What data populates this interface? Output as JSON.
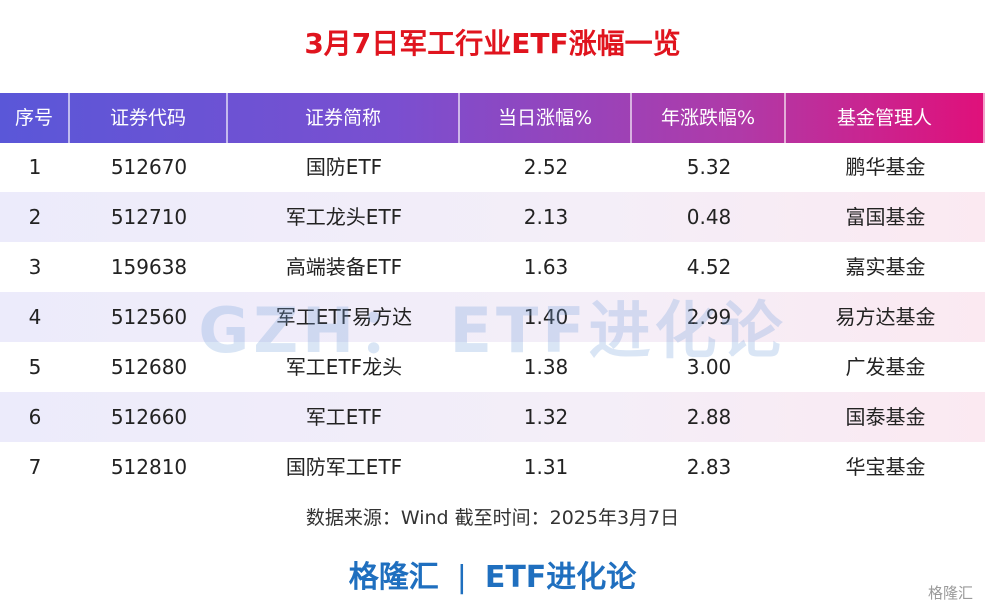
{
  "header": {
    "title": "3月7日军工行业ETF涨幅一览"
  },
  "table": {
    "columns": [
      "序号",
      "证券代码",
      "证券简称",
      "当日涨幅%",
      "年涨跌幅%",
      "基金管理人"
    ],
    "rows": [
      [
        "1",
        "512670",
        "国防ETF",
        "2.52",
        "5.32",
        "鹏华基金"
      ],
      [
        "2",
        "512710",
        "军工龙头ETF",
        "2.13",
        "0.48",
        "富国基金"
      ],
      [
        "3",
        "159638",
        "高端装备ETF",
        "1.63",
        "4.52",
        "嘉实基金"
      ],
      [
        "4",
        "512560",
        "军工ETF易方达",
        "1.40",
        "2.99",
        "易方达基金"
      ],
      [
        "5",
        "512680",
        "军工ETF龙头",
        "1.38",
        "3.00",
        "广发基金"
      ],
      [
        "6",
        "512660",
        "军工ETF",
        "1.32",
        "2.88",
        "国泰基金"
      ],
      [
        "7",
        "512810",
        "国防军工ETF",
        "1.31",
        "2.83",
        "华宝基金"
      ]
    ]
  },
  "watermark": "GZH： ETF进化论",
  "source": "数据来源：Wind 截至时间：2025年3月7日",
  "footer": {
    "brand": "格隆汇",
    "account": "ETF进化论"
  },
  "corner_logo": "格隆汇"
}
